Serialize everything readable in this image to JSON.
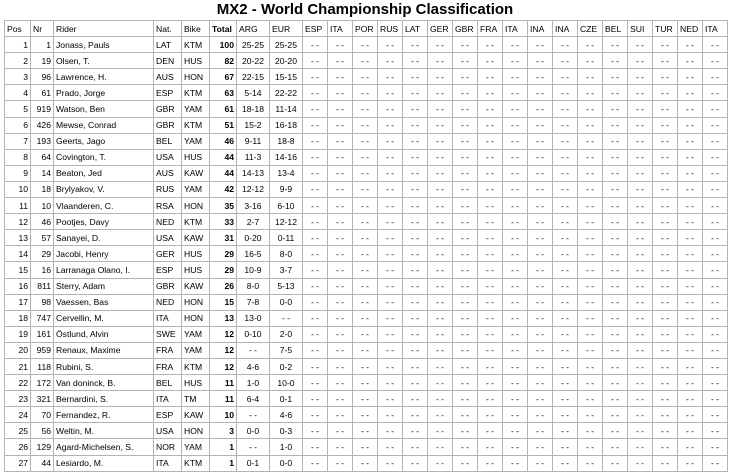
{
  "title": "MX2 - World Championship Classification",
  "columns": [
    "Pos",
    "Nr",
    "Rider",
    "Nat.",
    "Bike",
    "Total",
    "ARG",
    "EUR",
    "ESP",
    "ITA",
    "POR",
    "RUS",
    "LAT",
    "GER",
    "GBR",
    "FRA",
    "ITA",
    "INA",
    "INA",
    "CZE",
    "BEL",
    "SUI",
    "TUR",
    "NED",
    "ITA"
  ],
  "empty_result": "- -",
  "riders": [
    {
      "pos": "1",
      "nr": "1",
      "name": "Jonass, Pauls",
      "nat": "LAT",
      "bike": "KTM",
      "total": "100",
      "arg": "25-25",
      "eur": "25-25"
    },
    {
      "pos": "2",
      "nr": "19",
      "name": "Olsen, T.",
      "nat": "DEN",
      "bike": "HUS",
      "total": "82",
      "arg": "20-22",
      "eur": "20-20"
    },
    {
      "pos": "3",
      "nr": "96",
      "name": "Lawrence, H.",
      "nat": "AUS",
      "bike": "HON",
      "total": "67",
      "arg": "22-15",
      "eur": "15-15"
    },
    {
      "pos": "4",
      "nr": "61",
      "name": "Prado, Jorge",
      "nat": "ESP",
      "bike": "KTM",
      "total": "63",
      "arg": "5-14",
      "eur": "22-22"
    },
    {
      "pos": "5",
      "nr": "919",
      "name": "Watson, Ben",
      "nat": "GBR",
      "bike": "YAM",
      "total": "61",
      "arg": "18-18",
      "eur": "11-14"
    },
    {
      "pos": "6",
      "nr": "426",
      "name": "Mewse, Conrad",
      "nat": "GBR",
      "bike": "KTM",
      "total": "51",
      "arg": "15-2",
      "eur": "16-18"
    },
    {
      "pos": "7",
      "nr": "193",
      "name": "Geerts, Jago",
      "nat": "BEL",
      "bike": "YAM",
      "total": "46",
      "arg": "9-11",
      "eur": "18-8"
    },
    {
      "pos": "8",
      "nr": "64",
      "name": "Covington, T.",
      "nat": "USA",
      "bike": "HUS",
      "total": "44",
      "arg": "11-3",
      "eur": "14-16"
    },
    {
      "pos": "9",
      "nr": "14",
      "name": "Beaton, Jed",
      "nat": "AUS",
      "bike": "KAW",
      "total": "44",
      "arg": "14-13",
      "eur": "13-4"
    },
    {
      "pos": "10",
      "nr": "18",
      "name": "Brylyakov, V.",
      "nat": "RUS",
      "bike": "YAM",
      "total": "42",
      "arg": "12-12",
      "eur": "9-9"
    },
    {
      "pos": "11",
      "nr": "10",
      "name": "Vlaanderen, C.",
      "nat": "RSA",
      "bike": "HON",
      "total": "35",
      "arg": "3-16",
      "eur": "6-10"
    },
    {
      "pos": "12",
      "nr": "46",
      "name": "Pootjes, Davy",
      "nat": "NED",
      "bike": "KTM",
      "total": "33",
      "arg": "2-7",
      "eur": "12-12"
    },
    {
      "pos": "13",
      "nr": "57",
      "name": "Sanayei, D.",
      "nat": "USA",
      "bike": "KAW",
      "total": "31",
      "arg": "0-20",
      "eur": "0-11"
    },
    {
      "pos": "14",
      "nr": "29",
      "name": "Jacobi, Henry",
      "nat": "GER",
      "bike": "HUS",
      "total": "29",
      "arg": "16-5",
      "eur": "8-0"
    },
    {
      "pos": "15",
      "nr": "16",
      "name": "Larranaga Olano, I.",
      "nat": "ESP",
      "bike": "HUS",
      "total": "29",
      "arg": "10-9",
      "eur": "3-7"
    },
    {
      "pos": "16",
      "nr": "811",
      "name": "Sterry, Adam",
      "nat": "GBR",
      "bike": "KAW",
      "total": "26",
      "arg": "8-0",
      "eur": "5-13"
    },
    {
      "pos": "17",
      "nr": "98",
      "name": "Vaessen, Bas",
      "nat": "NED",
      "bike": "HON",
      "total": "15",
      "arg": "7-8",
      "eur": "0-0"
    },
    {
      "pos": "18",
      "nr": "747",
      "name": "Cervellin, M.",
      "nat": "ITA",
      "bike": "HON",
      "total": "13",
      "arg": "13-0",
      "eur": "- -"
    },
    {
      "pos": "19",
      "nr": "161",
      "name": "Östlund, Alvin",
      "nat": "SWE",
      "bike": "YAM",
      "total": "12",
      "arg": "0-10",
      "eur": "2-0"
    },
    {
      "pos": "20",
      "nr": "959",
      "name": "Renaux, Maxime",
      "nat": "FRA",
      "bike": "YAM",
      "total": "12",
      "arg": "- -",
      "eur": "7-5"
    },
    {
      "pos": "21",
      "nr": "118",
      "name": "Rubini, S.",
      "nat": "FRA",
      "bike": "KTM",
      "total": "12",
      "arg": "4-6",
      "eur": "0-2"
    },
    {
      "pos": "22",
      "nr": "172",
      "name": "Van doninck, B.",
      "nat": "BEL",
      "bike": "HUS",
      "total": "11",
      "arg": "1-0",
      "eur": "10-0"
    },
    {
      "pos": "23",
      "nr": "321",
      "name": "Bernardini, S.",
      "nat": "ITA",
      "bike": "TM",
      "total": "11",
      "arg": "6-4",
      "eur": "0-1"
    },
    {
      "pos": "24",
      "nr": "70",
      "name": "Fernandez, R.",
      "nat": "ESP",
      "bike": "KAW",
      "total": "10",
      "arg": "- -",
      "eur": "4-6"
    },
    {
      "pos": "25",
      "nr": "56",
      "name": "Weltin, M.",
      "nat": "USA",
      "bike": "HON",
      "total": "3",
      "arg": "0-0",
      "eur": "0-3"
    },
    {
      "pos": "26",
      "nr": "129",
      "name": "Agard-Michelsen, S.",
      "nat": "NOR",
      "bike": "YAM",
      "total": "1",
      "arg": "- -",
      "eur": "1-0"
    },
    {
      "pos": "27",
      "nr": "44",
      "name": "Lesiardo, M.",
      "nat": "ITA",
      "bike": "KTM",
      "total": "1",
      "arg": "0-1",
      "eur": "0-0"
    }
  ]
}
